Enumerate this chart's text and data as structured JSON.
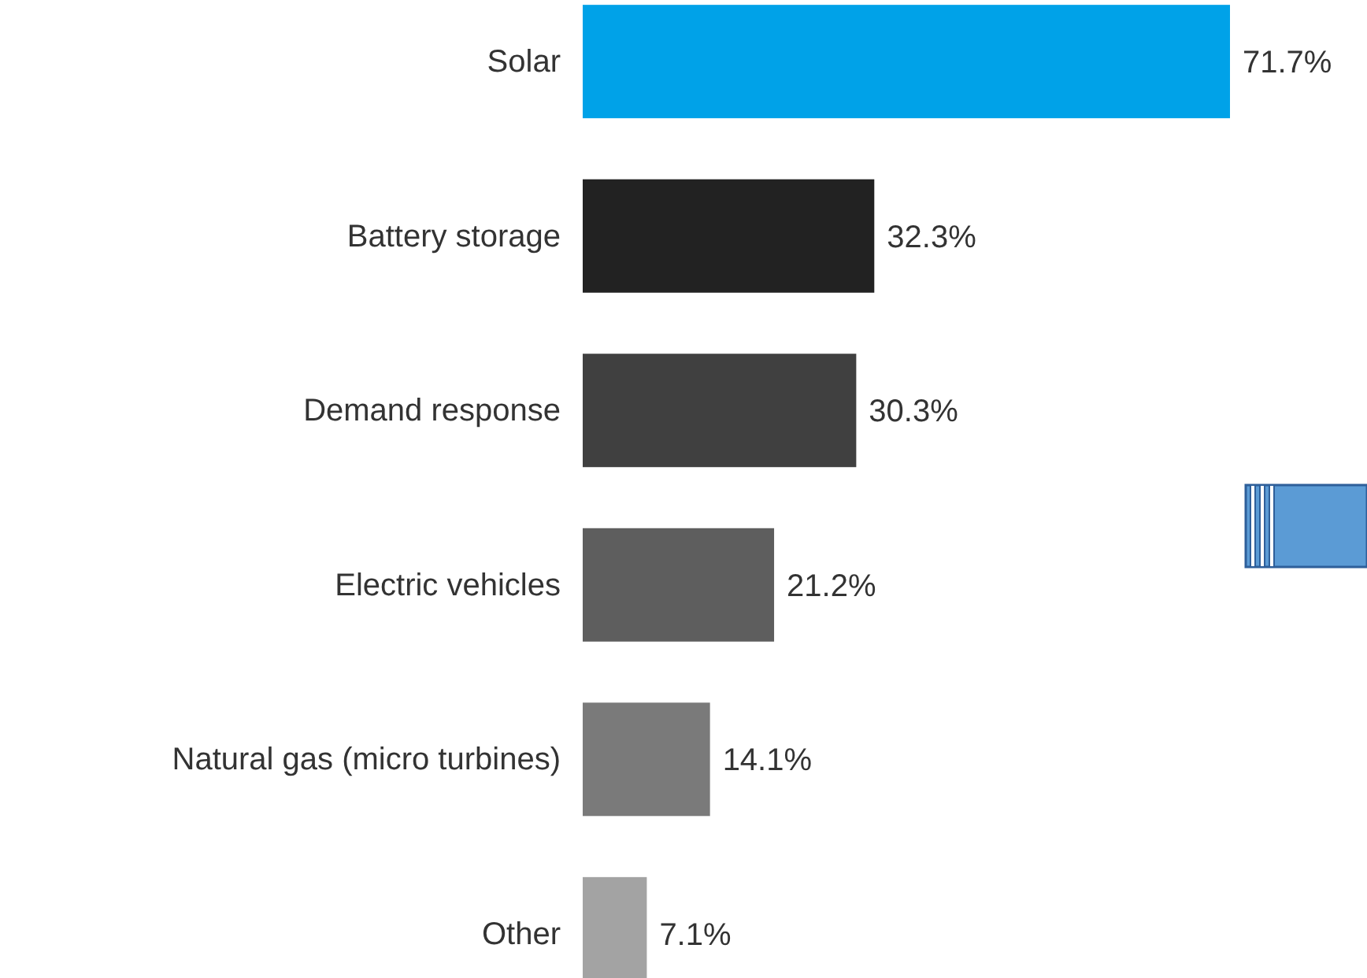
{
  "chart_data": {
    "type": "bar",
    "orientation": "horizontal",
    "categories": [
      "Solar",
      "Battery storage",
      "Demand response",
      "Electric vehicles",
      "Natural gas (micro turbines)",
      "Other"
    ],
    "values": [
      71.7,
      32.3,
      30.3,
      21.2,
      14.1,
      7.1
    ],
    "colors": [
      "#00a2e8",
      "#222222",
      "#404040",
      "#5e5e5e",
      "#7a7a7a",
      "#a3a3a3"
    ],
    "value_labels": [
      "71.7%",
      "32.3%",
      "30.3%",
      "21.2%",
      "14.1%",
      "7.1%"
    ]
  }
}
